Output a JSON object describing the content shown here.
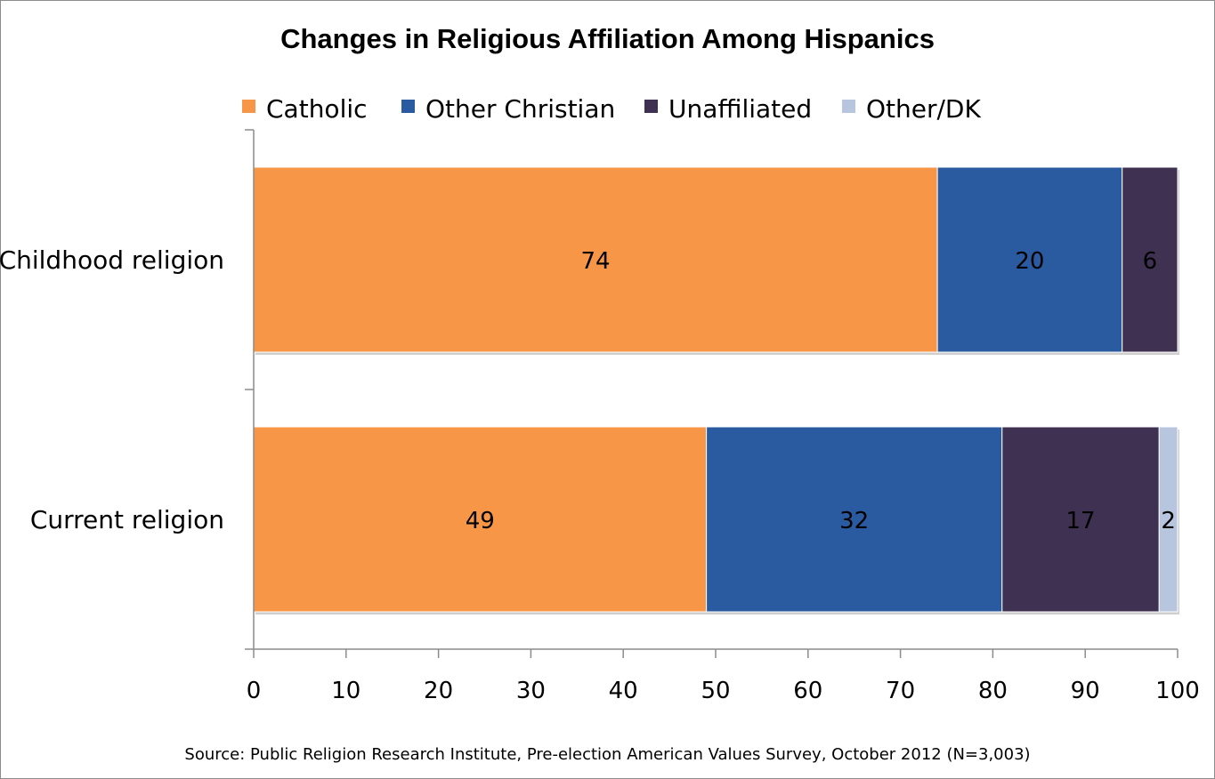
{
  "chart_data": {
    "type": "bar",
    "orientation": "horizontal",
    "stacked": true,
    "title": "Changes in Religious Affiliation Among Hispanics",
    "categories": [
      "Childhood religion",
      "Current religion"
    ],
    "series": [
      {
        "name": "Catholic",
        "color": "#F79646",
        "values": [
          74,
          49
        ],
        "labels": [
          "74",
          "49"
        ]
      },
      {
        "name": "Other Christian",
        "color": "#2A5AA0",
        "values": [
          20,
          32
        ],
        "labels": [
          "20",
          "32"
        ]
      },
      {
        "name": "Unaffiliated",
        "color": "#3F3151",
        "values": [
          6,
          17
        ],
        "labels": [
          "6",
          "17"
        ]
      },
      {
        "name": "Other/DK",
        "color": "#B7C5DF",
        "values": [
          0,
          2
        ],
        "labels": [
          "",
          "2"
        ]
      }
    ],
    "xlim": [
      0,
      100
    ],
    "xticks": [
      "0",
      "10",
      "20",
      "30",
      "40",
      "50",
      "60",
      "70",
      "80",
      "90",
      "100"
    ],
    "grid": false,
    "legend_position": "top"
  },
  "source": "Source: Public Religion Research Institute, Pre-election American Values Survey, October 2012 (N=3,003)"
}
